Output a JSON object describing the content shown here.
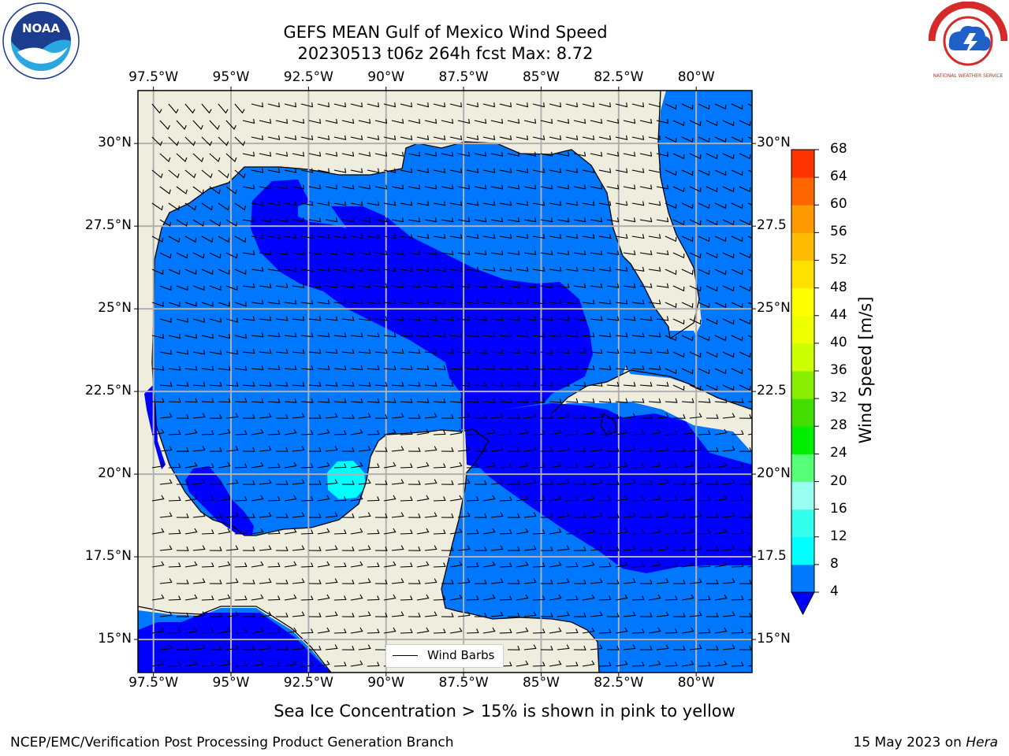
{
  "title": {
    "line1": "GEFS MEAN Gulf of Mexico Wind Speed",
    "line2": "20230513 t06z 264h fcst   Max: 8.72"
  },
  "map": {
    "lon_ticks": [
      "97.5°W",
      "95°W",
      "92.5°W",
      "90°W",
      "87.5°W",
      "85°W",
      "82.5°W",
      "80°W"
    ],
    "lat_ticks": [
      "30°N",
      "27.5°N",
      "25°N",
      "22.5°N",
      "20°N",
      "17.5°N",
      "15°N"
    ],
    "lat_ticks_right": [
      "30°N",
      "27.5",
      "25°N",
      "22.5",
      "20°N",
      "17.5",
      "15°N"
    ],
    "lon_range": [
      -98,
      -78.2
    ],
    "lat_range": [
      14,
      31.6
    ],
    "land_color": "#efedde",
    "ocean_levels": {
      "below_4": "#0000ff",
      "4_to_8": "#0077ff",
      "8_to_12": "#00ffff"
    }
  },
  "legend": {
    "label": "Wind Barbs"
  },
  "colorbar": {
    "title": "Wind Speed [m/s]",
    "ticks": [
      "4",
      "8",
      "12",
      "16",
      "20",
      "24",
      "28",
      "32",
      "36",
      "40",
      "44",
      "48",
      "52",
      "56",
      "60",
      "64",
      "68"
    ],
    "colors": [
      "#0077ff",
      "#00ffff",
      "#33ffee",
      "#99ffee",
      "#55ff77",
      "#00ee00",
      "#44dd00",
      "#88ee00",
      "#ccff00",
      "#eeff00",
      "#ffff00",
      "#ffe000",
      "#ffbb00",
      "#ff9900",
      "#ff6600",
      "#ff3300",
      "#ff0000"
    ],
    "extend_color": "#0000ff"
  },
  "subtitle": "Sea Ice Concentration > 15% is shown in pink to yellow",
  "footer": {
    "left": "NCEP/EMC/Verification Post Processing Product Generation Branch",
    "right_date": "15 May 2023 on ",
    "right_host": "Hera"
  },
  "logos": {
    "noaa_text": "NOAA",
    "nws_text": "NATIONAL WEATHER SERVICE"
  }
}
